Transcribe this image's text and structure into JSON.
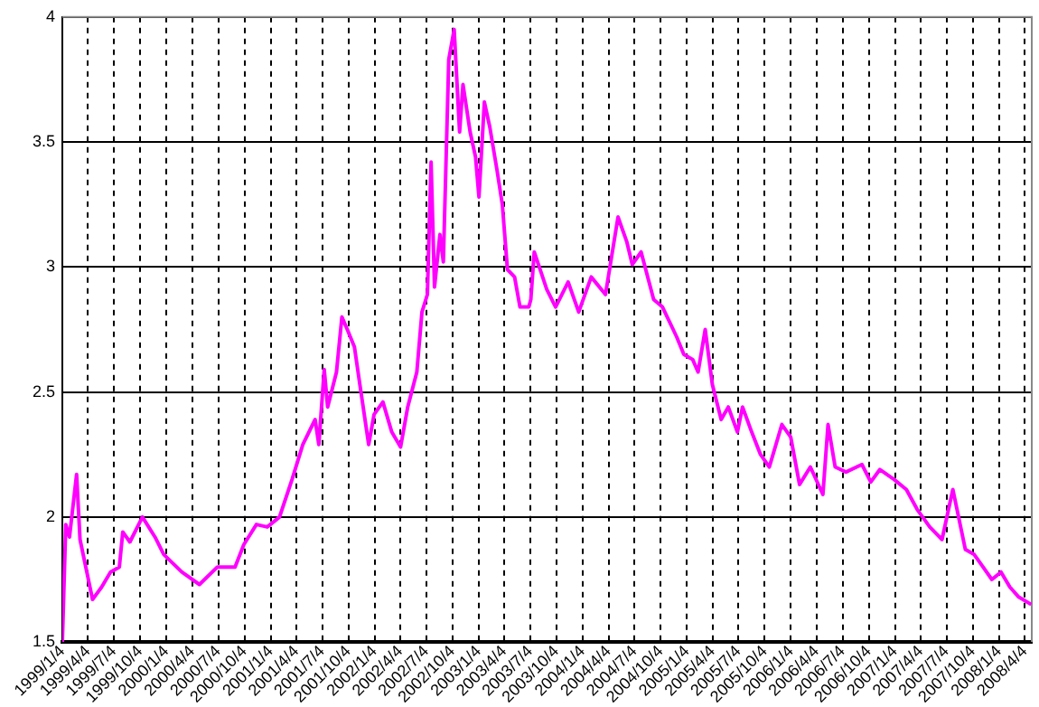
{
  "chart_data": {
    "type": "line",
    "grid": true,
    "legend": false,
    "marker": "none",
    "line_style": "solid",
    "xlim": [
      "1999-01-04",
      "2008-04-28"
    ],
    "xticks": [
      {
        "value": "1999-01-04",
        "label": "1999/1/4"
      },
      {
        "value": "1999-04-04",
        "label": "1999/4/4"
      },
      {
        "value": "1999-07-04",
        "label": "1999/7/4"
      },
      {
        "value": "1999-10-04",
        "label": "1999/10/4"
      },
      {
        "value": "2000-01-04",
        "label": "2000/1/4"
      },
      {
        "value": "2000-04-04",
        "label": "2000/4/4"
      },
      {
        "value": "2000-07-04",
        "label": "2000/7/4"
      },
      {
        "value": "2000-10-04",
        "label": "2000/10/4"
      },
      {
        "value": "2001-01-04",
        "label": "2001/1/4"
      },
      {
        "value": "2001-04-04",
        "label": "2001/4/4"
      },
      {
        "value": "2001-07-04",
        "label": "2001/7/4"
      },
      {
        "value": "2001-10-04",
        "label": "2001/10/4"
      },
      {
        "value": "2002-01-04",
        "label": "2002/1/4"
      },
      {
        "value": "2002-04-04",
        "label": "2002/4/4"
      },
      {
        "value": "2002-07-04",
        "label": "2002/7/4"
      },
      {
        "value": "2002-10-04",
        "label": "2002/10/4"
      },
      {
        "value": "2003-01-04",
        "label": "2003/1/4"
      },
      {
        "value": "2003-04-04",
        "label": "2003/4/4"
      },
      {
        "value": "2003-07-04",
        "label": "2003/7/4"
      },
      {
        "value": "2003-10-04",
        "label": "2003/10/4"
      },
      {
        "value": "2004-01-04",
        "label": "2004/1/4"
      },
      {
        "value": "2004-04-04",
        "label": "2004/4/4"
      },
      {
        "value": "2004-07-04",
        "label": "2004/7/4"
      },
      {
        "value": "2004-10-04",
        "label": "2004/10/4"
      },
      {
        "value": "2005-01-04",
        "label": "2005/1/4"
      },
      {
        "value": "2005-04-04",
        "label": "2005/4/4"
      },
      {
        "value": "2005-07-04",
        "label": "2005/7/4"
      },
      {
        "value": "2005-10-04",
        "label": "2005/10/4"
      },
      {
        "value": "2006-01-04",
        "label": "2006/1/4"
      },
      {
        "value": "2006-04-04",
        "label": "2006/4/4"
      },
      {
        "value": "2006-07-04",
        "label": "2006/7/4"
      },
      {
        "value": "2006-10-04",
        "label": "2006/10/4"
      },
      {
        "value": "2007-01-04",
        "label": "2007/1/4"
      },
      {
        "value": "2007-04-04",
        "label": "2007/4/4"
      },
      {
        "value": "2007-07-04",
        "label": "2007/7/4"
      },
      {
        "value": "2007-10-04",
        "label": "2007/10/4"
      },
      {
        "value": "2008-01-04",
        "label": "2008/1/4"
      },
      {
        "value": "2008-04-04",
        "label": "2008/4/4"
      }
    ],
    "ylim": [
      1.5,
      4
    ],
    "yticks": [
      1.5,
      2,
      2.5,
      3,
      3.5,
      4
    ],
    "x": [
      "1999-01-04",
      "1999-01-16",
      "1999-01-29",
      "1999-02-23",
      "1999-03-07",
      "1999-04-20",
      "1999-05-22",
      "1999-06-22",
      "1999-07-23",
      "1999-08-04",
      "1999-08-29",
      "1999-10-12",
      "1999-11-25",
      "1999-12-26",
      "2000-02-27",
      "2000-04-29",
      "2000-07-01",
      "2000-09-01",
      "2000-10-02",
      "2000-11-15",
      "2000-12-23",
      "2001-02-04",
      "2001-03-20",
      "2001-04-27",
      "2001-06-09",
      "2001-06-22",
      "2001-07-11",
      "2001-07-23",
      "2001-08-23",
      "2001-09-11",
      "2001-09-30",
      "2001-10-25",
      "2001-11-13",
      "2001-12-14",
      "2002-01-02",
      "2002-02-02",
      "2002-03-05",
      "2002-04-05",
      "2002-04-30",
      "2002-06-01",
      "2002-06-19",
      "2002-07-08",
      "2002-07-21",
      "2002-08-02",
      "2002-08-21",
      "2002-09-02",
      "2002-09-21",
      "2002-10-10",
      "2002-10-29",
      "2002-11-10",
      "2002-12-05",
      "2002-12-24",
      "2003-01-05",
      "2003-01-24",
      "2003-02-12",
      "2003-03-09",
      "2003-03-28",
      "2003-04-15",
      "2003-05-10",
      "2003-05-29",
      "2003-06-29",
      "2003-07-06",
      "2003-07-18",
      "2003-08-31",
      "2003-10-01",
      "2003-11-14",
      "2003-12-21",
      "2004-02-03",
      "2004-03-24",
      "2004-05-07",
      "2004-06-07",
      "2004-06-26",
      "2004-07-27",
      "2004-09-09",
      "2004-10-10",
      "2004-11-29",
      "2004-12-24",
      "2005-01-24",
      "2005-02-12",
      "2005-03-09",
      "2005-04-03",
      "2005-05-04",
      "2005-05-29",
      "2005-06-30",
      "2005-07-18",
      "2005-08-19",
      "2005-09-19",
      "2005-10-20",
      "2005-12-03",
      "2006-01-03",
      "2006-02-03",
      "2006-03-13",
      "2006-04-26",
      "2006-05-14",
      "2006-06-08",
      "2006-07-16",
      "2006-09-10",
      "2006-10-11",
      "2006-11-12",
      "2007-01-01",
      "2007-02-13",
      "2007-03-23",
      "2007-05-06",
      "2007-06-18",
      "2007-07-26",
      "2007-09-08",
      "2007-10-09",
      "2007-11-09",
      "2007-12-10",
      "2008-01-11",
      "2008-02-11",
      "2008-03-13",
      "2008-04-26"
    ],
    "series": [
      {
        "color": "#ff00ff",
        "values": [
          1.5,
          1.97,
          1.92,
          2.17,
          1.91,
          1.67,
          1.72,
          1.78,
          1.8,
          1.94,
          1.9,
          2.0,
          1.92,
          1.85,
          1.78,
          1.73,
          1.8,
          1.8,
          1.89,
          1.97,
          1.96,
          2.0,
          2.15,
          2.29,
          2.39,
          2.29,
          2.59,
          2.44,
          2.58,
          2.8,
          2.75,
          2.68,
          2.53,
          2.29,
          2.41,
          2.46,
          2.34,
          2.28,
          2.44,
          2.58,
          2.82,
          2.89,
          3.42,
          2.92,
          3.13,
          3.02,
          3.83,
          3.95,
          3.54,
          3.73,
          3.54,
          3.44,
          3.28,
          3.66,
          3.56,
          3.39,
          3.25,
          2.99,
          2.96,
          2.84,
          2.84,
          2.87,
          3.06,
          2.91,
          2.84,
          2.94,
          2.82,
          2.96,
          2.89,
          3.2,
          3.1,
          3.01,
          3.06,
          2.87,
          2.84,
          2.72,
          2.65,
          2.63,
          2.58,
          2.75,
          2.53,
          2.39,
          2.44,
          2.34,
          2.44,
          2.34,
          2.25,
          2.2,
          2.37,
          2.32,
          2.13,
          2.2,
          2.09,
          2.37,
          2.2,
          2.18,
          2.21,
          2.14,
          2.19,
          2.15,
          2.11,
          2.03,
          1.96,
          1.91,
          2.11,
          1.87,
          1.85,
          1.8,
          1.75,
          1.78,
          1.72,
          1.68,
          1.65
        ]
      }
    ]
  }
}
